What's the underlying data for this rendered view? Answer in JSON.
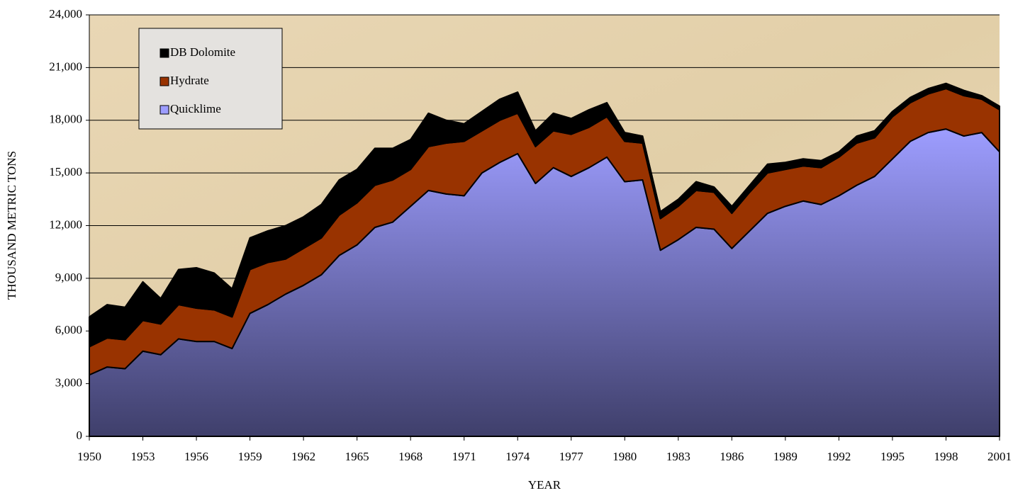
{
  "chart_data": {
    "type": "stacked_area",
    "x_label": "YEAR",
    "y_label": "THOUSAND METRIC TONS",
    "x": [
      1950,
      1951,
      1952,
      1953,
      1954,
      1955,
      1956,
      1957,
      1958,
      1959,
      1960,
      1961,
      1962,
      1963,
      1964,
      1965,
      1966,
      1967,
      1968,
      1969,
      1970,
      1971,
      1972,
      1973,
      1974,
      1975,
      1976,
      1977,
      1978,
      1979,
      1980,
      1981,
      1982,
      1983,
      1984,
      1985,
      1986,
      1987,
      1988,
      1989,
      1990,
      1991,
      1992,
      1993,
      1994,
      1995,
      1996,
      1997,
      1998,
      1999,
      2000,
      2001
    ],
    "xlim": [
      1950,
      2001
    ],
    "xticks": [
      1950,
      1953,
      1956,
      1959,
      1962,
      1965,
      1968,
      1971,
      1974,
      1977,
      1980,
      1983,
      1986,
      1989,
      1992,
      1995,
      1998,
      2001
    ],
    "ylim": [
      0,
      24000
    ],
    "yticks": [
      0,
      {
        "value": 3000,
        "label": "3,000"
      },
      {
        "value": 6000,
        "label": "6,000"
      },
      {
        "value": 9000,
        "label": "9,000"
      },
      {
        "value": 12000,
        "label": "12,000"
      },
      {
        "value": 15000,
        "label": "15,000"
      },
      {
        "value": 18000,
        "label": "18,000"
      },
      {
        "value": 21000,
        "label": "21,000"
      },
      {
        "value": 24000,
        "label": "24,000"
      }
    ],
    "grid": true,
    "legend": "top-left",
    "series": [
      {
        "name": "Quicklime",
        "color": "#9d9dff",
        "values": [
          3500,
          3950,
          3850,
          4850,
          4650,
          5550,
          5400,
          5400,
          5000,
          7000,
          7500,
          8100,
          8600,
          9200,
          10300,
          10900,
          11900,
          12200,
          13100,
          14000,
          13800,
          13700,
          15000,
          15600,
          16100,
          14400,
          15300,
          14800,
          15300,
          15900,
          14500,
          14600,
          10600,
          11200,
          11900,
          11800,
          10700,
          11700,
          12700,
          13100,
          13400,
          13200,
          13700,
          14300,
          14800,
          15800,
          16800,
          17300,
          17500,
          17100,
          17300,
          16200
        ]
      },
      {
        "name": "Hydrate",
        "color": "#993300",
        "values": [
          1600,
          1650,
          1650,
          1750,
          1750,
          1950,
          1900,
          1800,
          1800,
          2500,
          2400,
          2000,
          2100,
          2100,
          2300,
          2400,
          2400,
          2400,
          2100,
          2500,
          2900,
          3100,
          2400,
          2400,
          2300,
          2100,
          2100,
          2400,
          2300,
          2300,
          2300,
          2100,
          1800,
          1900,
          2100,
          2100,
          2000,
          2200,
          2300,
          2100,
          2000,
          2100,
          2200,
          2400,
          2200,
          2400,
          2200,
          2200,
          2300,
          2300,
          1900,
          2400
        ]
      },
      {
        "name": "DB Dolomite",
        "color": "#000000",
        "values": [
          1700,
          1900,
          1850,
          2200,
          1450,
          2000,
          2300,
          2100,
          1600,
          1800,
          1800,
          1900,
          1800,
          1900,
          2000,
          1900,
          2100,
          1800,
          1700,
          1900,
          1300,
          1000,
          1100,
          1200,
          1200,
          900,
          1000,
          900,
          1000,
          800,
          500,
          400,
          400,
          400,
          500,
          300,
          400,
          400,
          500,
          400,
          400,
          400,
          300,
          400,
          400,
          300,
          300,
          300,
          300,
          300,
          200,
          200
        ]
      }
    ]
  }
}
